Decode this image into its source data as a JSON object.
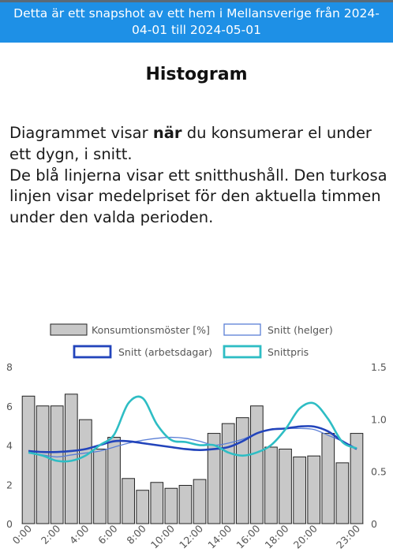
{
  "banner": {
    "line1": "Detta är ett snapshot av ett hem i Mellansverige från 2024-",
    "line2": "04-01 till 2024-05-01"
  },
  "page": {
    "title": "Histogram",
    "desc_part1": "Diagrammet visar ",
    "desc_bold": "när",
    "desc_part2": " du konsumerar el under ett dygn, i snitt.",
    "desc_line2": "De blå linjerna visar ett snitthushåll. Den turkosa linjen visar medelpriset för den aktuella timmen under den valda perioden."
  },
  "colors": {
    "banner": "#1e90e6",
    "bar_fill": "#c8c8c8",
    "bar_stroke": "#222222",
    "helger": "#5b7fd6",
    "arbetsdagar": "#2244bb",
    "snittpris": "#2ebdc4"
  },
  "chart_data": {
    "type": "bar",
    "legend": {
      "bars": "Konsumtionsmöster [%]",
      "helger": "Snitt (helger)",
      "arbetsdagar": "Snitt (arbetsdagar)",
      "pris": "Snittpris"
    },
    "hours": [
      0,
      1,
      2,
      3,
      4,
      5,
      6,
      7,
      8,
      9,
      10,
      11,
      12,
      13,
      14,
      15,
      16,
      17,
      18,
      19,
      20,
      21,
      22,
      23
    ],
    "x_tick_labels": [
      "0:00",
      "2:00",
      "4:00",
      "6:00",
      "8:00",
      "10:00",
      "12:00",
      "14:00",
      "16:00",
      "18:00",
      "20:00",
      "23:00"
    ],
    "x_tick_hours": [
      0,
      2,
      4,
      6,
      8,
      10,
      12,
      14,
      16,
      18,
      20,
      23
    ],
    "values": [
      6.5,
      6.0,
      6.0,
      6.6,
      5.3,
      3.8,
      4.4,
      2.3,
      1.7,
      2.1,
      1.8,
      1.95,
      2.25,
      4.6,
      5.1,
      5.4,
      6.0,
      3.9,
      3.8,
      3.4,
      3.45,
      4.6,
      3.1,
      4.6
    ],
    "ylim": [
      0,
      8
    ],
    "y_ticks": [
      0,
      2,
      4,
      6,
      8
    ],
    "y2lim": [
      0,
      1.5
    ],
    "y2_ticks": [
      "0",
      "0.5",
      "1.0",
      "1.5"
    ],
    "y2_tick_values": [
      0,
      0.5,
      1.0,
      1.5
    ],
    "series": [
      {
        "name": "Snitt (helger)",
        "values": [
          3.6,
          3.5,
          3.4,
          3.5,
          3.6,
          3.7,
          3.9,
          4.1,
          4.25,
          4.35,
          4.4,
          4.35,
          4.2,
          4.0,
          4.1,
          4.3,
          4.6,
          4.8,
          4.85,
          4.85,
          4.8,
          4.5,
          4.2,
          3.8
        ]
      },
      {
        "name": "Snitt (arbetsdagar)",
        "values": [
          3.7,
          3.65,
          3.65,
          3.7,
          3.8,
          4.0,
          4.2,
          4.2,
          4.1,
          4.0,
          3.9,
          3.8,
          3.75,
          3.8,
          3.9,
          4.2,
          4.6,
          4.8,
          4.85,
          4.95,
          4.95,
          4.7,
          4.2,
          3.8
        ]
      },
      {
        "name": "Snittpris",
        "values": [
          0.68,
          0.65,
          0.6,
          0.6,
          0.65,
          0.75,
          0.85,
          1.15,
          1.2,
          0.95,
          0.8,
          0.78,
          0.75,
          0.75,
          0.68,
          0.65,
          0.68,
          0.75,
          0.9,
          1.1,
          1.15,
          1.0,
          0.78,
          0.72
        ]
      }
    ]
  }
}
